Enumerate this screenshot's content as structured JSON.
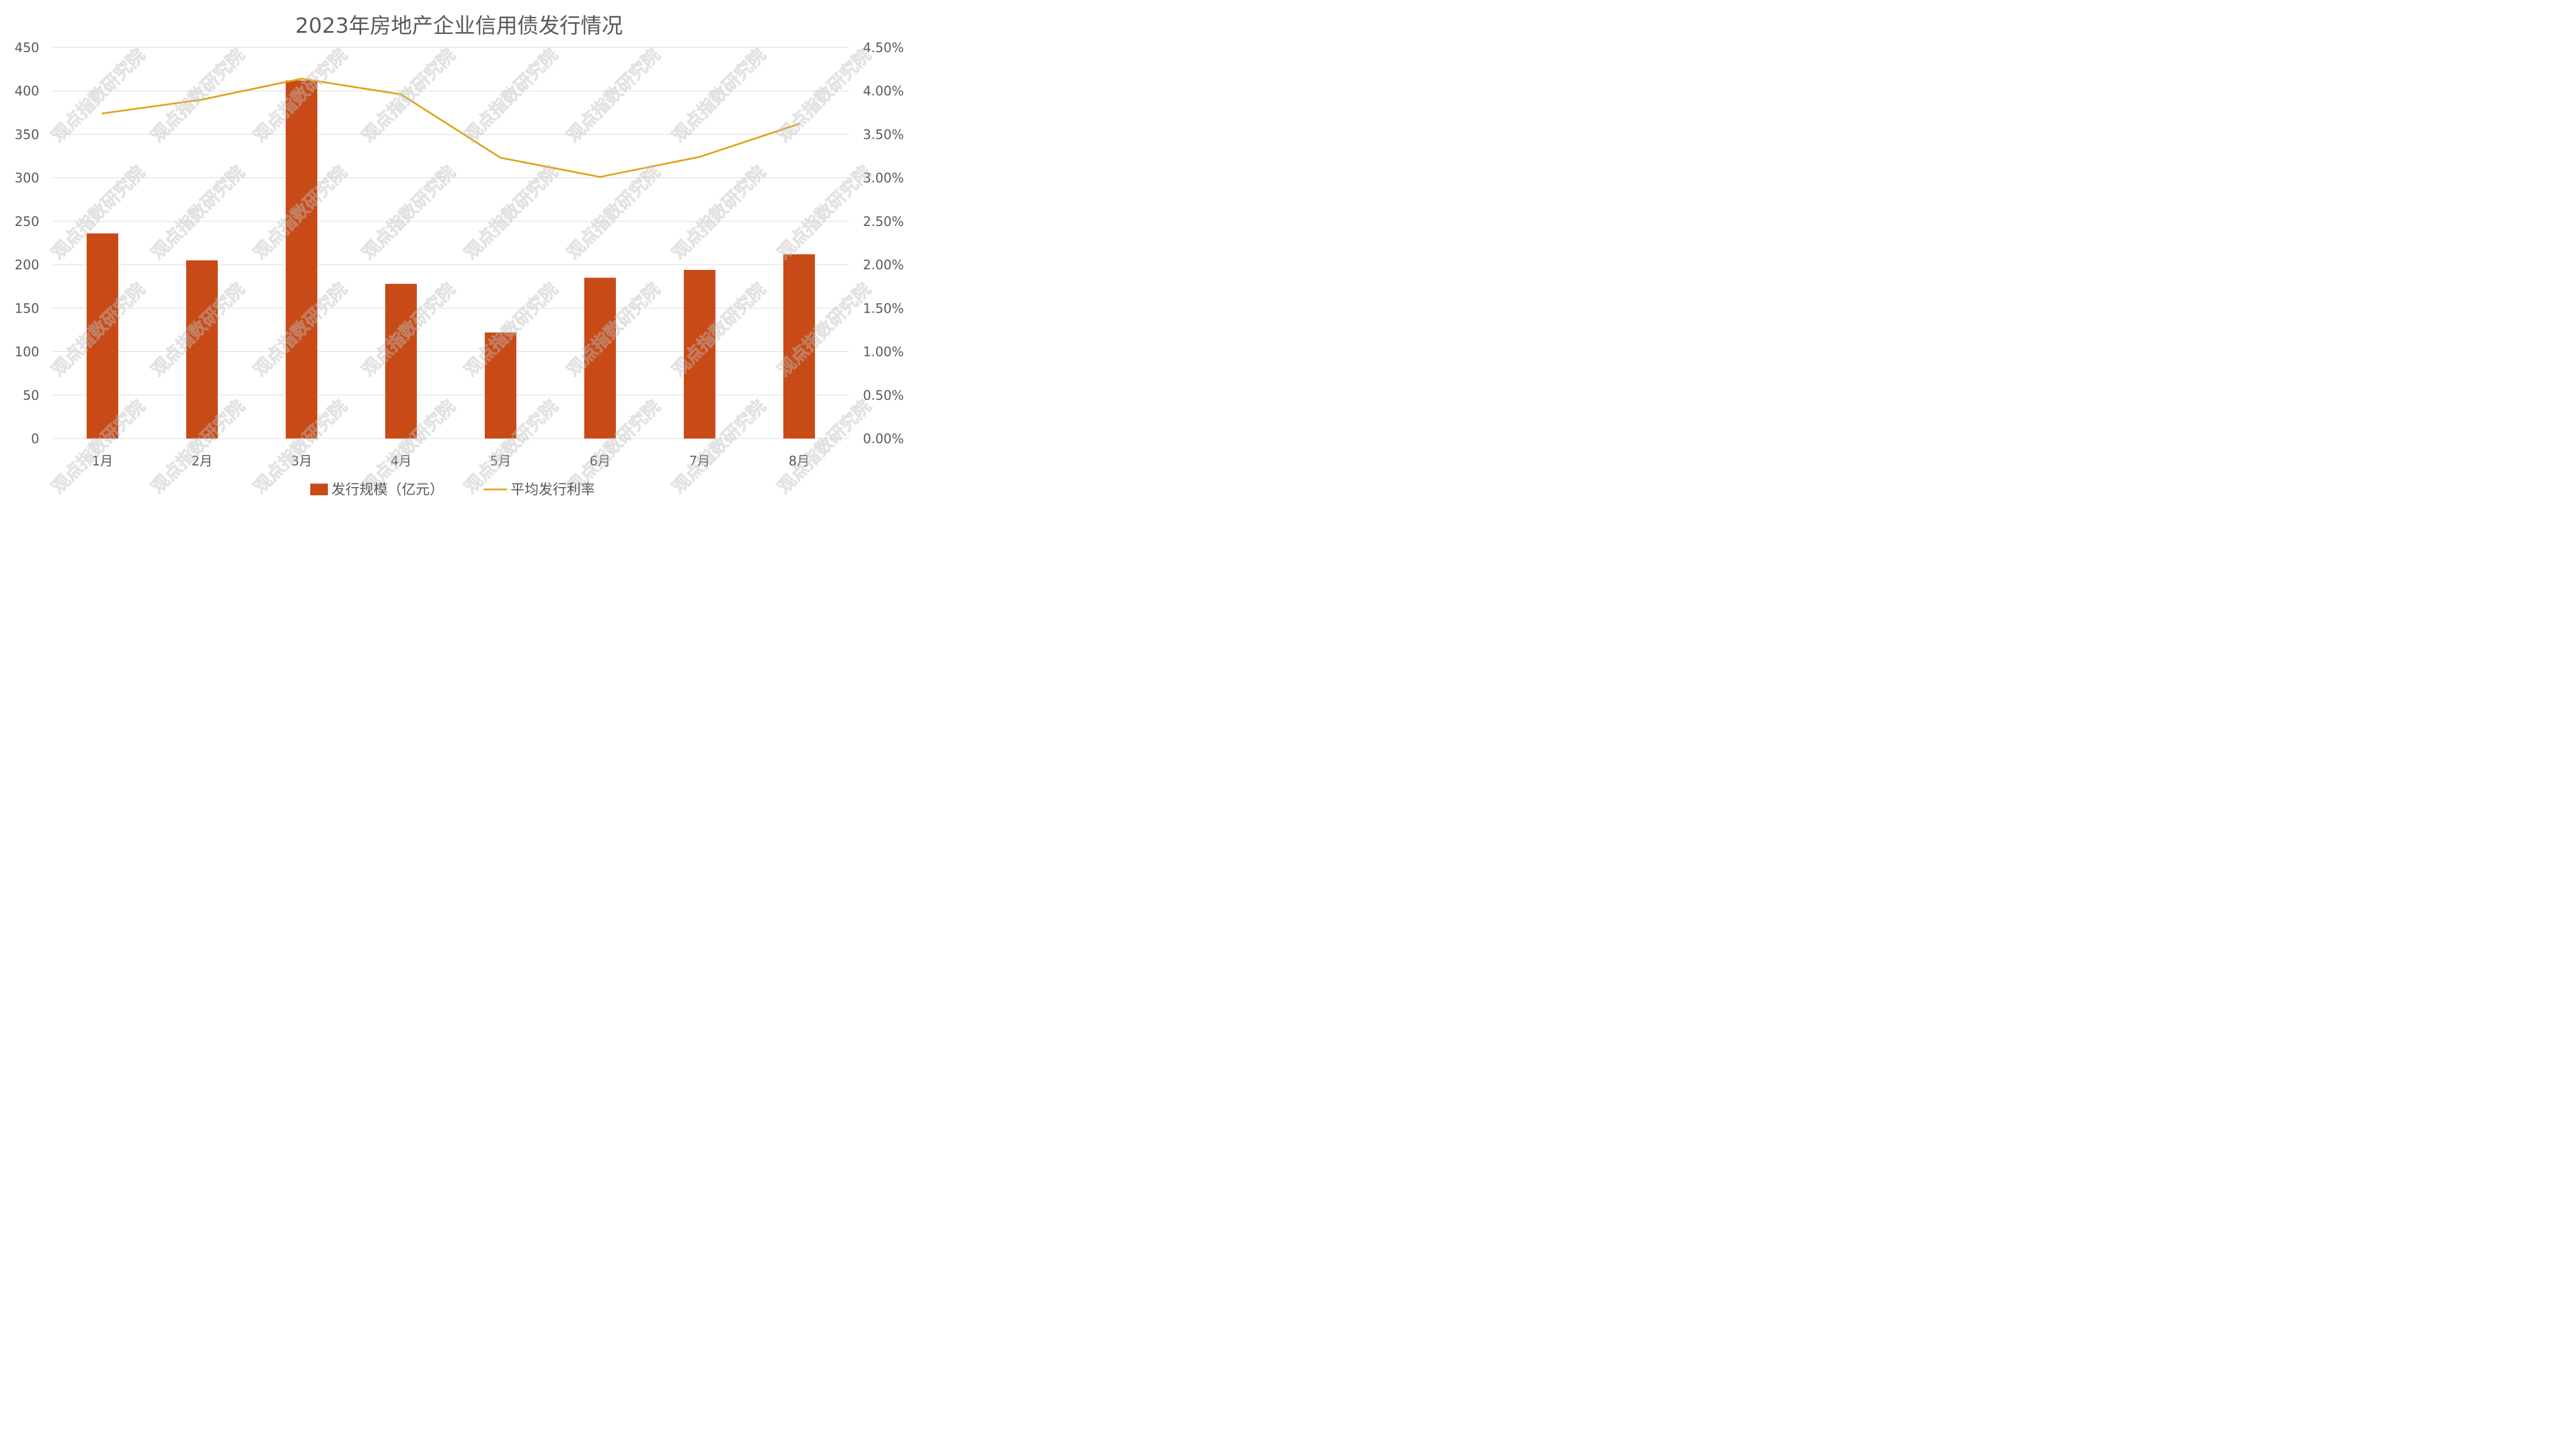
{
  "chart_data": {
    "type": "bar",
    "title": "2023年房地产企业信用债发行情况",
    "categories": [
      "1月",
      "2月",
      "3月",
      "4月",
      "5月",
      "6月",
      "7月",
      "8月"
    ],
    "series": [
      {
        "name": "发行规模（亿元）",
        "type": "bar",
        "axis": "left",
        "color": "#c84b17",
        "values": [
          236,
          205,
          412,
          178,
          122,
          185,
          194,
          212
        ]
      },
      {
        "name": "平均发行利率",
        "type": "line",
        "axis": "right",
        "color": "#e3a21a",
        "values": [
          3.74,
          3.9,
          4.14,
          3.96,
          3.23,
          3.01,
          3.24,
          3.62
        ]
      }
    ],
    "y_left": {
      "min": 0,
      "max": 450,
      "ticks": [
        "0",
        "50",
        "100",
        "150",
        "200",
        "250",
        "300",
        "350",
        "400",
        "450"
      ]
    },
    "y_right": {
      "min": 0,
      "max": 4.5,
      "unit": "%",
      "ticks": [
        "0.00%",
        "0.50%",
        "1.00%",
        "1.50%",
        "2.00%",
        "2.50%",
        "3.00%",
        "3.50%",
        "4.00%",
        "4.50%"
      ]
    },
    "grid": true,
    "legend_position": "bottom"
  },
  "watermark": "观点指数研究院"
}
